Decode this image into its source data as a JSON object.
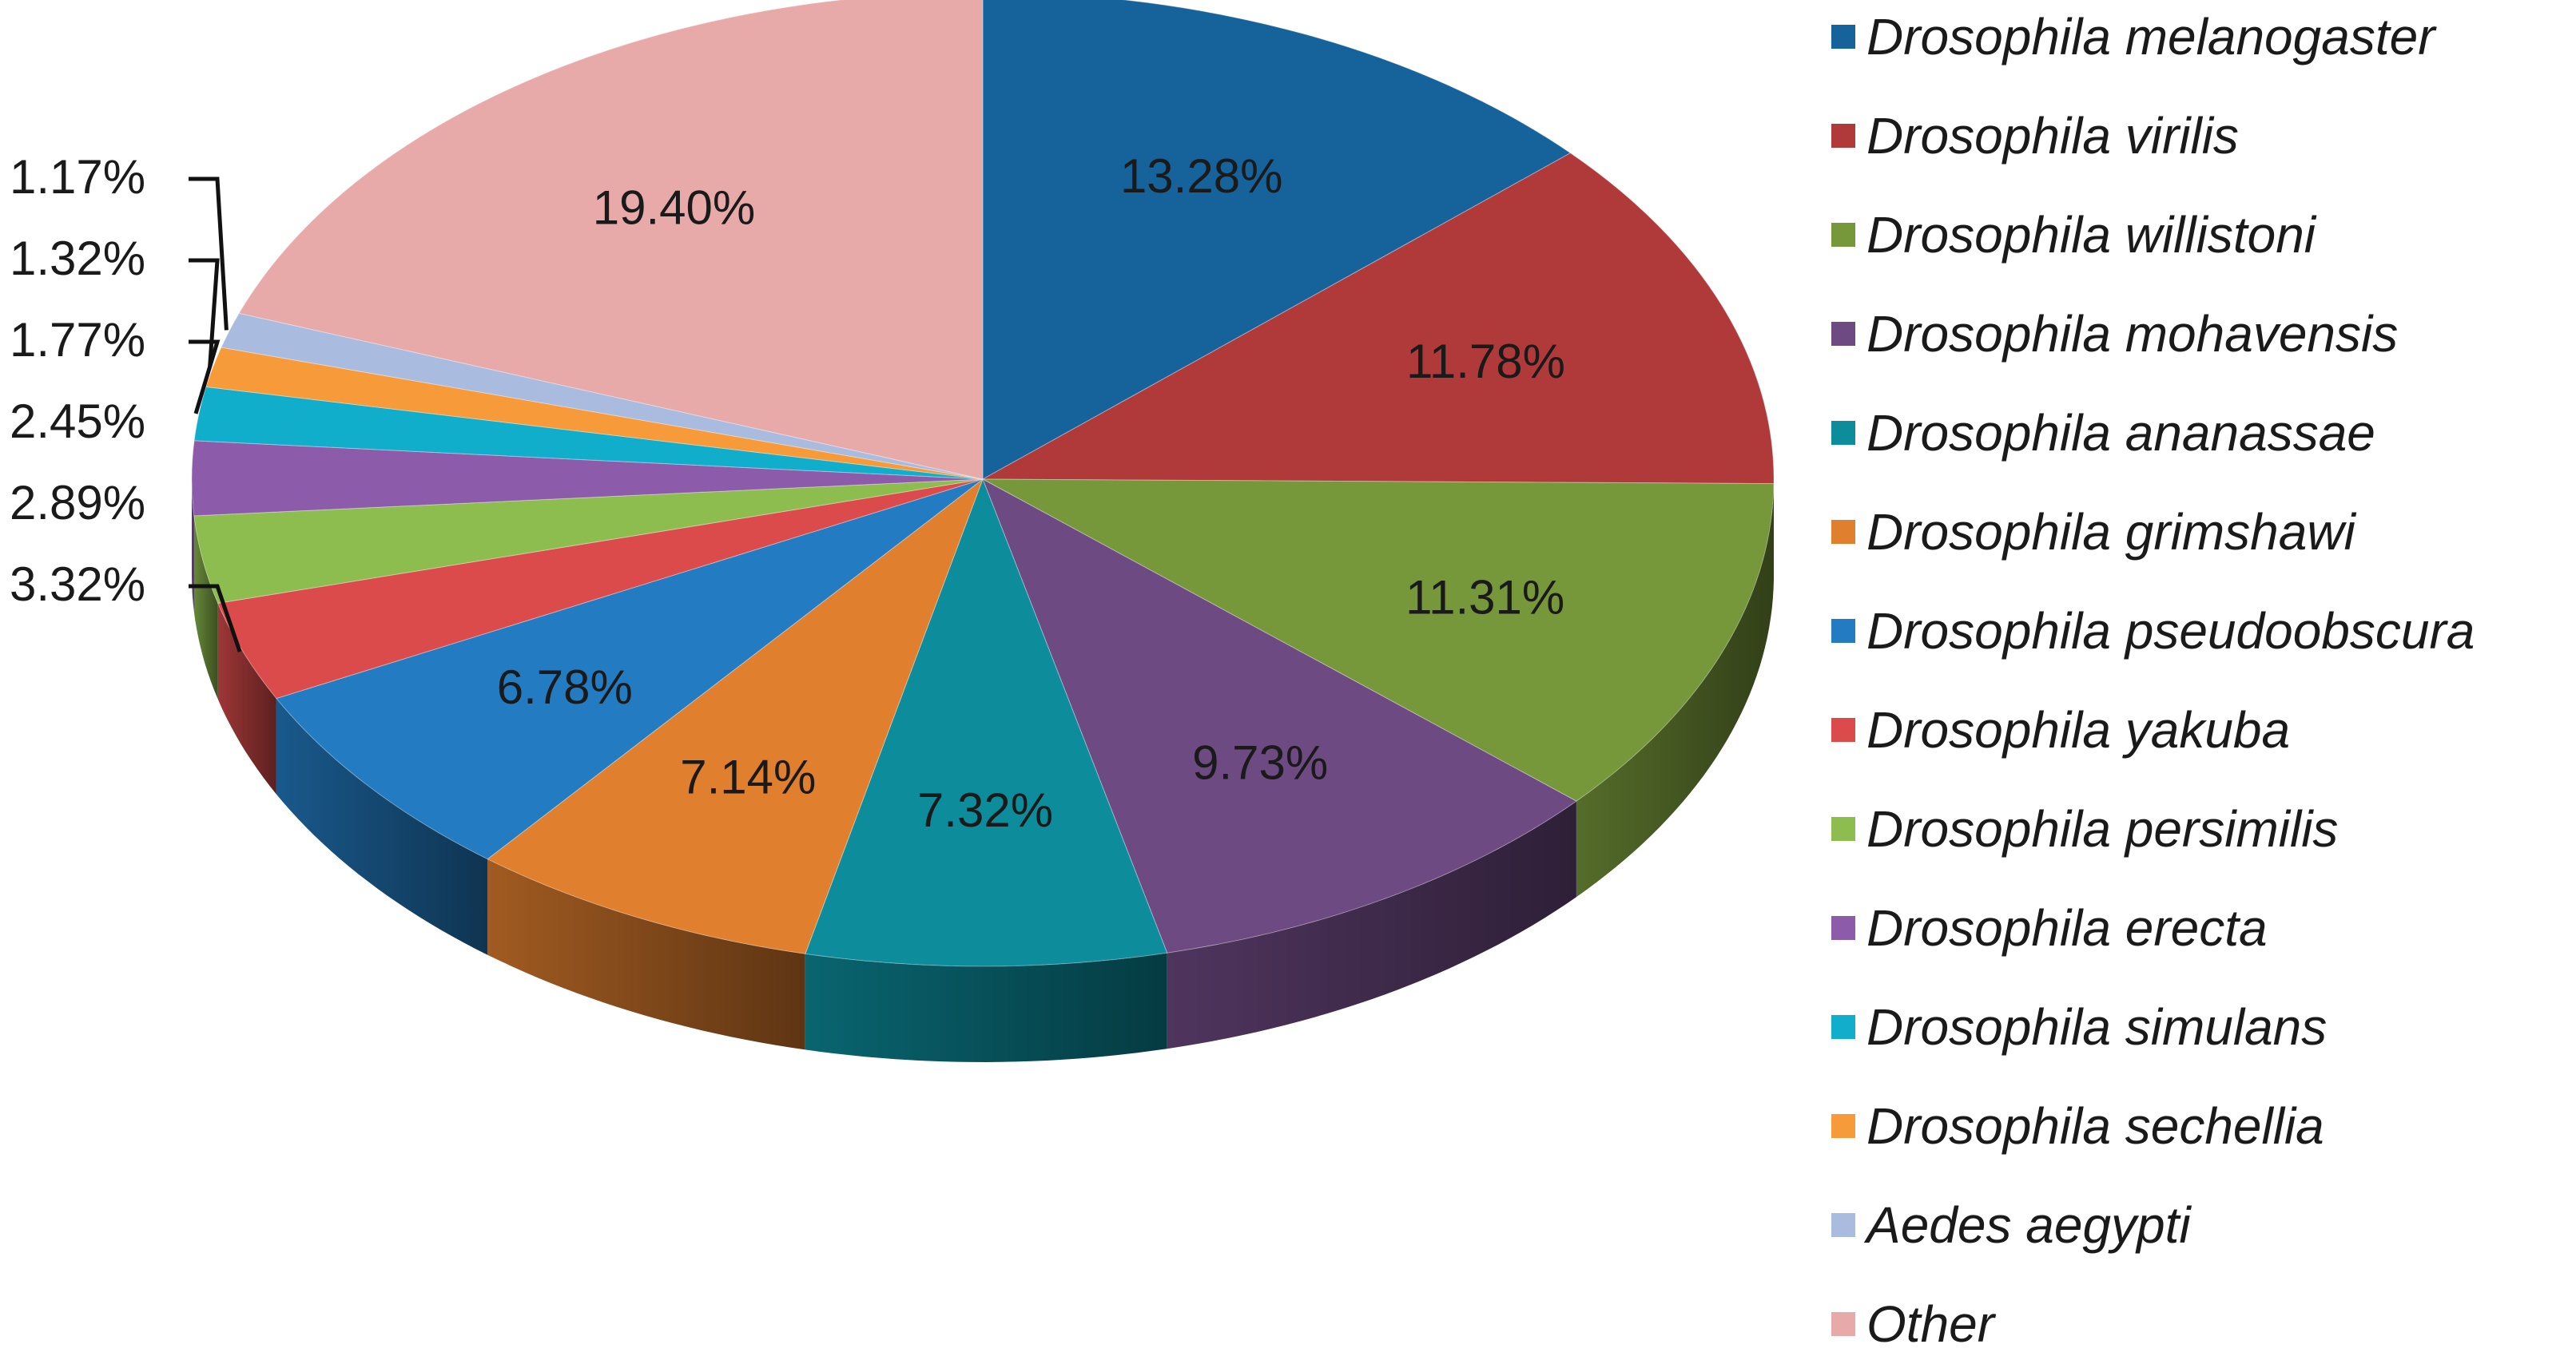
{
  "chart_data": {
    "type": "pie",
    "style": "3d-exploded-none",
    "start_angle_deg": 90,
    "direction": "clockwise",
    "legend_position": "right",
    "slices": [
      {
        "name": "Drosophila melanogaster",
        "value": 13.28,
        "label": "13.28%",
        "color": "#16629A"
      },
      {
        "name": "Drosophila virilis",
        "value": 11.78,
        "label": "11.78%",
        "color": "#B03A3A"
      },
      {
        "name": "Drosophila willistoni",
        "value": 11.31,
        "label": "11.31%",
        "color": "#76973A"
      },
      {
        "name": "Drosophila mohavensis",
        "value": 9.73,
        "label": "9.73%",
        "color": "#6E4A82"
      },
      {
        "name": "Drosophila ananassae",
        "value": 7.32,
        "label": "7.32%",
        "color": "#0D8C9C"
      },
      {
        "name": "Drosophila grimshawi",
        "value": 7.14,
        "label": "7.14%",
        "color": "#E07F2E"
      },
      {
        "name": "Drosophila pseudoobscura",
        "value": 6.78,
        "label": "6.78%",
        "color": "#237CC2"
      },
      {
        "name": "Drosophila yakuba",
        "value": 3.32,
        "label": "3.32%",
        "color": "#DC4B4B"
      },
      {
        "name": "Drosophila persimilis",
        "value": 2.89,
        "label": "2.89%",
        "color": "#8DBD4E"
      },
      {
        "name": "Drosophila erecta",
        "value": 2.45,
        "label": "2.45%",
        "color": "#8C5BAA"
      },
      {
        "name": "Drosophila simulans",
        "value": 1.77,
        "label": "1.77%",
        "color": "#11AECB"
      },
      {
        "name": "Drosophila sechellia",
        "value": 1.32,
        "label": "1.32%",
        "color": "#F79A3A"
      },
      {
        "name": "Aedes aegypti",
        "value": 1.17,
        "label": "1.17%",
        "color": "#A9BCDF"
      },
      {
        "name": "Other",
        "value": 19.4,
        "label": "19.40%",
        "color": "#E8A9A9"
      }
    ]
  }
}
